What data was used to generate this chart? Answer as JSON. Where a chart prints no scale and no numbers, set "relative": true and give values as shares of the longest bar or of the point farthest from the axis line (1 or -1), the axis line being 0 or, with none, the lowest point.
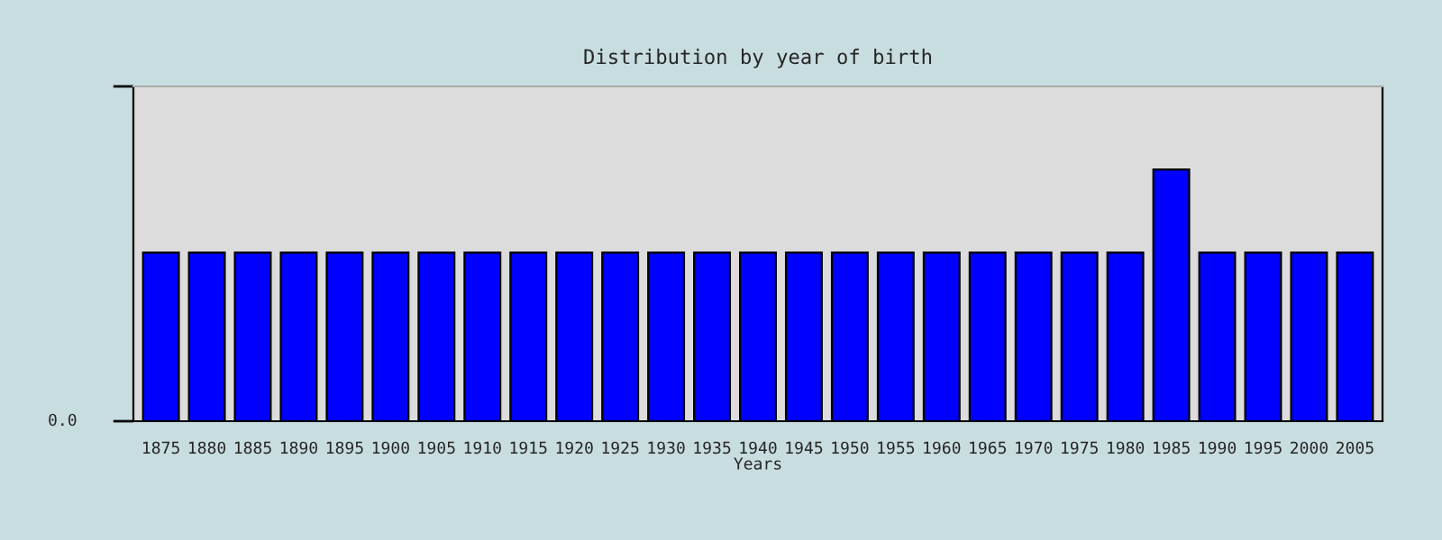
{
  "chart_data": {
    "type": "bar",
    "title": "Distribution by year of birth",
    "xlabel": "Years",
    "categories": [
      "1875",
      "1880",
      "1885",
      "1890",
      "1895",
      "1900",
      "1905",
      "1910",
      "1915",
      "1920",
      "1925",
      "1930",
      "1935",
      "1940",
      "1945",
      "1950",
      "1955",
      "1960",
      "1965",
      "1970",
      "1975",
      "1980",
      "1985",
      "1990",
      "1995",
      "2000",
      "2005"
    ],
    "values": [
      0.67,
      0.67,
      0.67,
      0.67,
      0.67,
      0.67,
      0.67,
      0.67,
      0.67,
      0.67,
      0.67,
      0.67,
      0.67,
      0.67,
      0.67,
      0.67,
      0.67,
      0.67,
      0.67,
      0.67,
      0.67,
      0.67,
      1,
      0.67,
      0.67,
      0.67,
      0.67
    ],
    "color": "#0000ff",
    "relative": true,
    "grid": false,
    "legend": false,
    "annotations": [
      "0.0"
    ]
  }
}
